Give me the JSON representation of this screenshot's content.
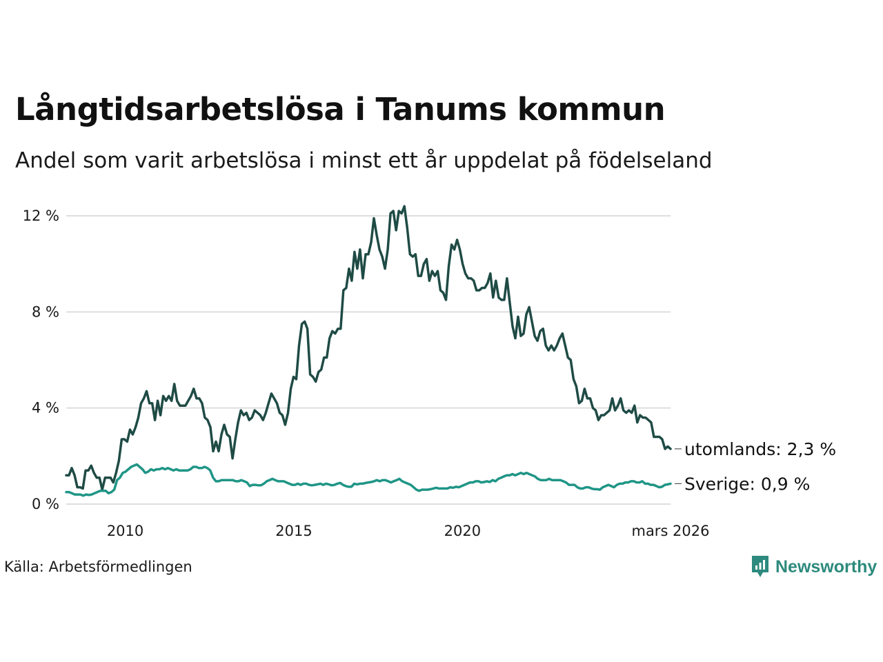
{
  "title": "Långtidsarbetslösa i Tanums kommun",
  "subtitle": "Andel som varit arbetslösa i minst ett år uppdelat på födelseland",
  "source": "Källa: Arbetsförmedlingen",
  "brand": "Newsworthy",
  "colors": {
    "foreign": "#1f4b45",
    "sweden": "#1f9586",
    "grid": "#dedede",
    "brand": "#2d8a7e"
  },
  "chart_data": {
    "type": "line",
    "x_start": 2008.25,
    "x_end": 2026.17,
    "xlim": [
      2008.25,
      2026.17
    ],
    "ylim": [
      0,
      12.5
    ],
    "y_ticks": [
      {
        "value": 0,
        "label": "0 %"
      },
      {
        "value": 4,
        "label": "4 %"
      },
      {
        "value": 8,
        "label": "8 %"
      },
      {
        "value": 12,
        "label": "12 %"
      }
    ],
    "x_ticks": [
      {
        "value": 2010,
        "label": "2010"
      },
      {
        "value": 2015,
        "label": "2015"
      },
      {
        "value": 2020,
        "label": "2020"
      },
      {
        "value": 2026.17,
        "label": "mars 2026"
      }
    ],
    "grid": true,
    "series": [
      {
        "name": "utomlands",
        "end_label": "utomlands: 2,3 %",
        "color_key": "foreign",
        "values": [
          1.2,
          1.2,
          1.5,
          1.2,
          0.7,
          0.7,
          0.65,
          1.4,
          1.4,
          1.6,
          1.3,
          1.1,
          1.1,
          0.6,
          1.1,
          1.1,
          1.1,
          0.9,
          1.3,
          1.8,
          2.7,
          2.7,
          2.6,
          3.1,
          2.9,
          3.2,
          3.6,
          4.2,
          4.4,
          4.7,
          4.2,
          4.2,
          3.5,
          4.3,
          3.7,
          4.5,
          4.3,
          4.5,
          4.3,
          5.0,
          4.3,
          4.1,
          4.1,
          4.1,
          4.3,
          4.5,
          4.8,
          4.4,
          4.4,
          4.2,
          3.6,
          3.5,
          3.2,
          2.2,
          2.6,
          2.2,
          2.9,
          3.3,
          2.9,
          2.8,
          1.9,
          2.7,
          3.4,
          3.9,
          3.7,
          3.8,
          3.5,
          3.6,
          3.9,
          3.8,
          3.7,
          3.5,
          3.8,
          4.2,
          4.6,
          4.4,
          4.2,
          3.8,
          3.7,
          3.3,
          3.8,
          4.8,
          5.3,
          5.2,
          6.6,
          7.5,
          7.6,
          7.3,
          5.4,
          5.3,
          5.1,
          5.5,
          5.6,
          6.1,
          6.1,
          6.9,
          7.2,
          7.1,
          7.3,
          7.3,
          8.9,
          9.0,
          9.8,
          9.3,
          10.5,
          9.8,
          10.6,
          9.4,
          10.4,
          10.4,
          10.9,
          11.9,
          11.2,
          10.6,
          10.3,
          9.8,
          10.6,
          12.1,
          12.2,
          11.4,
          12.2,
          12.1,
          12.4,
          11.5,
          10.4,
          10.3,
          10.4,
          9.5,
          9.5,
          10.0,
          10.2,
          9.3,
          9.7,
          9.5,
          9.7,
          8.9,
          8.8,
          8.5,
          9.9,
          10.8,
          10.6,
          11.0,
          10.6,
          10.0,
          9.6,
          9.4,
          9.4,
          9.3,
          8.9,
          8.9,
          9.0,
          9.0,
          9.2,
          9.6,
          8.6,
          9.3,
          8.6,
          8.5,
          8.5,
          9.4,
          8.4,
          7.4,
          6.9,
          7.8,
          7.0,
          7.1,
          7.9,
          8.2,
          7.6,
          7.0,
          6.8,
          7.2,
          7.3,
          6.6,
          6.4,
          6.6,
          6.4,
          6.6,
          6.9,
          7.1,
          6.6,
          6.1,
          6.0,
          5.2,
          4.9,
          4.2,
          4.3,
          4.8,
          4.4,
          4.4,
          4.0,
          3.9,
          3.5,
          3.7,
          3.7,
          3.8,
          3.9,
          4.4,
          3.9,
          4.1,
          4.4,
          3.9,
          3.8,
          3.9,
          3.8,
          4.1,
          3.4,
          3.7,
          3.6,
          3.6,
          3.5,
          3.4,
          2.8,
          2.8,
          2.8,
          2.7,
          2.3,
          2.4,
          2.3
        ]
      },
      {
        "name": "Sverige",
        "end_label": "Sverige: 0,9 %",
        "color_key": "sweden",
        "values": [
          0.5,
          0.5,
          0.45,
          0.4,
          0.4,
          0.4,
          0.35,
          0.4,
          0.38,
          0.4,
          0.45,
          0.5,
          0.55,
          0.55,
          0.55,
          0.45,
          0.5,
          0.6,
          1.0,
          1.1,
          1.3,
          1.35,
          1.45,
          1.55,
          1.6,
          1.65,
          1.55,
          1.45,
          1.3,
          1.35,
          1.45,
          1.4,
          1.45,
          1.45,
          1.5,
          1.45,
          1.5,
          1.45,
          1.4,
          1.45,
          1.4,
          1.4,
          1.4,
          1.4,
          1.45,
          1.55,
          1.55,
          1.5,
          1.5,
          1.55,
          1.5,
          1.4,
          1.1,
          0.95,
          0.95,
          1.0,
          1.0,
          1.0,
          1.0,
          1.0,
          0.95,
          0.95,
          1.0,
          0.95,
          0.9,
          0.75,
          0.8,
          0.8,
          0.78,
          0.78,
          0.85,
          0.95,
          1.0,
          1.05,
          1.0,
          0.95,
          0.95,
          0.95,
          0.9,
          0.85,
          0.8,
          0.8,
          0.85,
          0.8,
          0.85,
          0.85,
          0.8,
          0.78,
          0.8,
          0.82,
          0.85,
          0.8,
          0.85,
          0.82,
          0.78,
          0.8,
          0.85,
          0.88,
          0.8,
          0.75,
          0.72,
          0.72,
          0.85,
          0.82,
          0.85,
          0.85,
          0.88,
          0.9,
          0.92,
          0.95,
          1.0,
          0.95,
          1.0,
          1.0,
          0.95,
          0.9,
          0.95,
          1.0,
          1.05,
          0.95,
          0.9,
          0.85,
          0.8,
          0.7,
          0.6,
          0.55,
          0.6,
          0.6,
          0.6,
          0.62,
          0.65,
          0.68,
          0.65,
          0.65,
          0.65,
          0.65,
          0.7,
          0.68,
          0.72,
          0.7,
          0.75,
          0.8,
          0.85,
          0.9,
          0.9,
          0.95,
          0.95,
          0.9,
          0.92,
          0.95,
          0.92,
          1.0,
          0.95,
          1.05,
          1.1,
          1.15,
          1.2,
          1.2,
          1.25,
          1.2,
          1.25,
          1.3,
          1.25,
          1.3,
          1.25,
          1.2,
          1.15,
          1.05,
          1.0,
          1.0,
          1.0,
          1.05,
          1.0,
          1.0,
          1.0,
          1.0,
          0.95,
          0.9,
          0.8,
          0.8,
          0.8,
          0.7,
          0.65,
          0.65,
          0.7,
          0.7,
          0.65,
          0.62,
          0.62,
          0.6,
          0.7,
          0.75,
          0.8,
          0.75,
          0.7,
          0.8,
          0.85,
          0.85,
          0.9,
          0.9,
          0.95,
          0.95,
          0.9,
          0.9,
          0.95,
          0.85,
          0.85,
          0.8,
          0.8,
          0.75,
          0.7,
          0.72,
          0.8,
          0.82,
          0.85
        ]
      }
    ]
  }
}
